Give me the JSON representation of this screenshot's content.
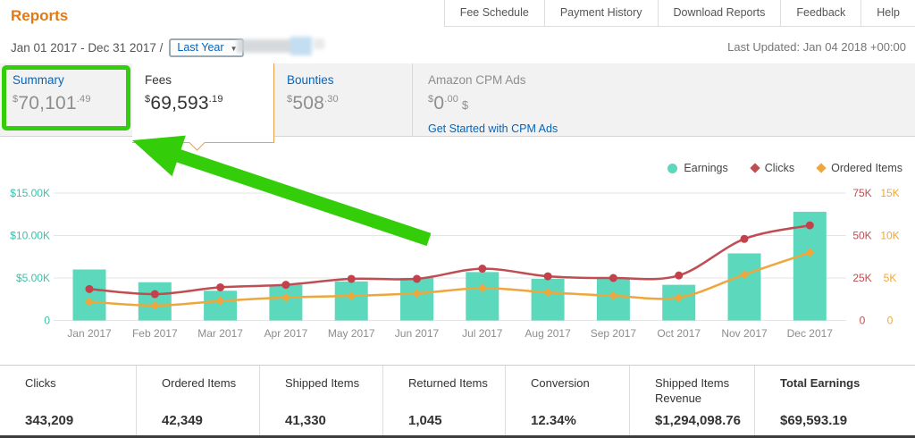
{
  "header": {
    "title": "Reports",
    "nav": [
      "Fee Schedule",
      "Payment History",
      "Download Reports",
      "Feedback",
      "Help"
    ],
    "date_range": "Jan 01 2017 - Dec 31 2017 /",
    "range_select": "Last Year",
    "last_updated": "Last Updated: Jan 04 2018 +00:00"
  },
  "tabs": [
    {
      "label": "Summary",
      "currency": "$",
      "amount": "70,101",
      "cents": "49"
    },
    {
      "label": "Fees",
      "currency": "$",
      "amount": "69,593",
      "cents": "19"
    },
    {
      "label": "Bounties",
      "currency": "$",
      "amount": "508",
      "cents": "30"
    },
    {
      "label": "Amazon CPM Ads",
      "currency": "$",
      "amount": "0",
      "cents": "00",
      "suffix": " $",
      "link": "Get Started with CPM Ads"
    }
  ],
  "chart_data": {
    "type": "bar",
    "subtype": "bar+line combo, dual right axes",
    "categories": [
      "Jan 2017",
      "Feb 2017",
      "Mar 2017",
      "Apr 2017",
      "May 2017",
      "Jun 2017",
      "Jul 2017",
      "Aug 2017",
      "Sep 2017",
      "Oct 2017",
      "Nov 2017",
      "Dec 2017"
    ],
    "series": [
      {
        "name": "Earnings",
        "type": "bar",
        "marker": "circle",
        "color": "#5cd8bd",
        "axis": "left",
        "values": [
          6000,
          4500,
          3500,
          4200,
          4600,
          5000,
          5700,
          4900,
          5000,
          4200,
          7900,
          12800
        ]
      },
      {
        "name": "Clicks",
        "type": "line",
        "marker": "diamond",
        "color": "#bf4d52",
        "dot_color": "#c2414a",
        "axis": "right_clicks",
        "values": [
          18500,
          15500,
          19500,
          21000,
          24500,
          24500,
          30500,
          26000,
          25000,
          26500,
          48000,
          56000
        ]
      },
      {
        "name": "Ordered Items",
        "type": "line",
        "marker": "diamond",
        "color": "#eea73c",
        "dot_color": "#eea73c",
        "axis": "right_ordered",
        "values": [
          2200,
          1750,
          2300,
          2700,
          2900,
          3200,
          3800,
          3300,
          2900,
          2700,
          5400,
          8000
        ]
      }
    ],
    "axes": {
      "left": {
        "ticks": [
          "$15.00K",
          "$10.00K",
          "$5.00K",
          "0"
        ],
        "max": 15000,
        "color": "#3fbfa7"
      },
      "right_clicks": {
        "ticks": [
          "75K",
          "50K",
          "25K",
          "0"
        ],
        "max": 75000,
        "color": "#bf4d52"
      },
      "right_ordered": {
        "ticks": [
          "15K",
          "10K",
          "5K",
          "0"
        ],
        "max": 15000,
        "color": "#eea73c"
      }
    },
    "grid": true,
    "legend_position": "top-right",
    "label_color": "#8d8d8d"
  },
  "summary_table": {
    "columns": [
      {
        "label": "Clicks",
        "value": "343,209"
      },
      {
        "label": "Ordered Items",
        "value": "42,349"
      },
      {
        "label": "Shipped Items",
        "value": "41,330"
      },
      {
        "label": "Returned Items",
        "value": "1,045"
      },
      {
        "label": "Conversion",
        "value": "12.34%"
      },
      {
        "label": "Shipped Items Revenue",
        "value": "$1,294,098.76"
      },
      {
        "label": "Total Earnings",
        "value": "$69,593.19",
        "bold": true
      }
    ]
  },
  "annotation": {
    "color": "#33cd0a"
  }
}
